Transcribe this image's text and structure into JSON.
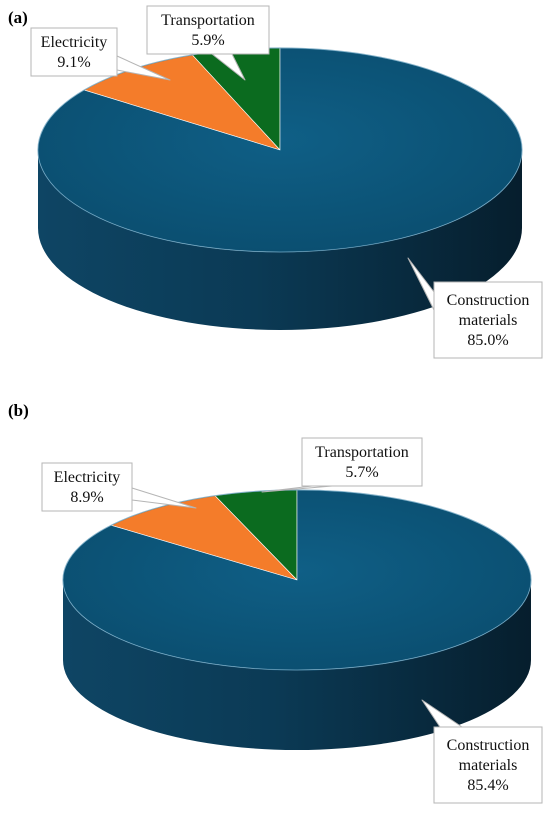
{
  "chart_data": [
    {
      "type": "pie",
      "panel_label": "(a)",
      "style": "3d",
      "slices": [
        {
          "label_lines": [
            "Transportation"
          ],
          "value_text": "5.9%",
          "value": 5.9,
          "color": "#0b6b1f"
        },
        {
          "label_lines": [
            "Electricity"
          ],
          "value_text": "9.1%",
          "value": 9.1,
          "color": "#f47c2a"
        },
        {
          "label_lines": [
            "Construction",
            "materials"
          ],
          "value_text": "85.0%",
          "value": 85.0,
          "color": "#0d5a7e"
        }
      ]
    },
    {
      "type": "pie",
      "panel_label": "(b)",
      "style": "3d",
      "slices": [
        {
          "label_lines": [
            "Transportation"
          ],
          "value_text": "5.7%",
          "value": 5.7,
          "color": "#0b6b1f"
        },
        {
          "label_lines": [
            "Electricity"
          ],
          "value_text": "8.9%",
          "value": 8.9,
          "color": "#f47c2a"
        },
        {
          "label_lines": [
            "Construction",
            "materials"
          ],
          "value_text": "85.4%",
          "value": 85.4,
          "color": "#0d5a7e"
        }
      ]
    }
  ]
}
